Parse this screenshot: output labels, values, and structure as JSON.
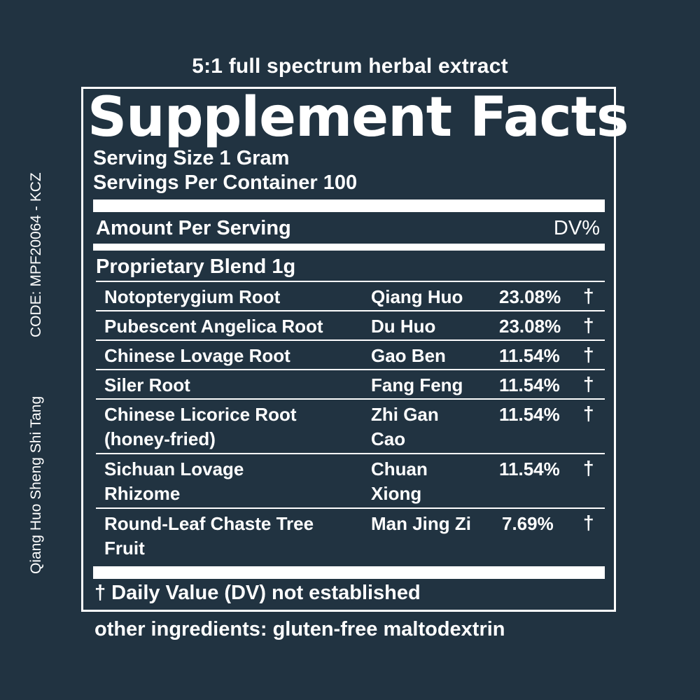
{
  "subtitle": "5:1 full spectrum herbal extract",
  "side": {
    "code": "CODE: MPF20064 - KCZ",
    "formula_name": "Qiang Huo Sheng Shi Tang"
  },
  "facts": {
    "title": "Supplement Facts",
    "serving_size": "Serving Size 1 Gram",
    "servings_per_container": "Servings Per Container 100",
    "amount_per_serving": "Amount Per Serving",
    "dv_header": "DV%",
    "blend": "Proprietary Blend 1g",
    "ingredients": [
      {
        "name": "Notopterygium Root",
        "pinyin": "Qiang Huo",
        "percent": "23.08%",
        "dv": "†"
      },
      {
        "name": "Pubescent Angelica Root",
        "pinyin": "Du Huo",
        "percent": "23.08%",
        "dv": "†"
      },
      {
        "name": "Chinese Lovage Root",
        "pinyin": "Gao Ben",
        "percent": "11.54%",
        "dv": "†"
      },
      {
        "name": "Siler Root",
        "pinyin": "Fang Feng",
        "percent": "11.54%",
        "dv": "†"
      },
      {
        "name": "Chinese Licorice Root (honey-fried)",
        "pinyin": "Zhi Gan Cao",
        "percent": "11.54%",
        "dv": "†"
      },
      {
        "name": "Sichuan Lovage Rhizome",
        "pinyin": "Chuan Xiong",
        "percent": "11.54%",
        "dv": "†"
      },
      {
        "name": "Round-Leaf Chaste Tree Fruit",
        "pinyin": "Man Jing Zi",
        "percent": "7.69%",
        "dv": "†"
      }
    ],
    "footnote": "† Daily Value (DV) not established"
  },
  "other_ingredients": "other ingredients: gluten-free maltodextrin",
  "colors": {
    "background": "#213341",
    "foreground": "#ffffff"
  }
}
